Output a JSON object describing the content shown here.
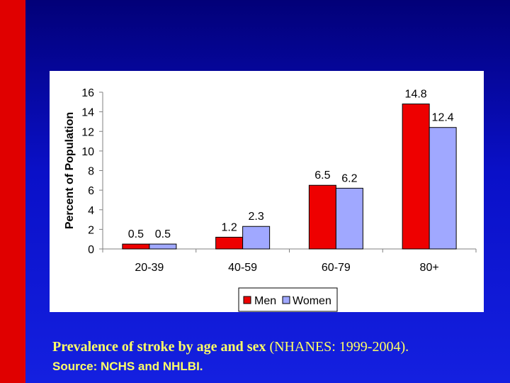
{
  "caption": {
    "bold_text": "Prevalence of stroke by age and sex",
    "regular_text": " (NHANES: 1999-2004)."
  },
  "source": "Source: NCHS and NHLBI.",
  "colors": {
    "background": "#1018d0",
    "left_bar": "#e00000",
    "men": "#ee0000",
    "women": "#a0a8ff",
    "caption": "#ffff66"
  },
  "chart_data": {
    "type": "bar",
    "title": "",
    "xlabel": "",
    "ylabel": "Percent of Population",
    "ylim": [
      0,
      16
    ],
    "yticks": [
      0,
      2,
      4,
      6,
      8,
      10,
      12,
      14,
      16
    ],
    "categories": [
      "20-39",
      "40-59",
      "60-79",
      "80+"
    ],
    "series": [
      {
        "name": "Men",
        "color": "#ee0000",
        "values": [
          0.5,
          1.2,
          6.5,
          14.8
        ],
        "labels": [
          "0.5",
          "1.2",
          "6.5",
          "14.8"
        ]
      },
      {
        "name": "Women",
        "color": "#a0a8ff",
        "values": [
          0.5,
          2.3,
          6.2,
          12.4
        ],
        "labels": [
          "0.5",
          "2.3",
          "6.2",
          "12.4"
        ]
      }
    ],
    "grid": false,
    "legend": "bottom"
  }
}
